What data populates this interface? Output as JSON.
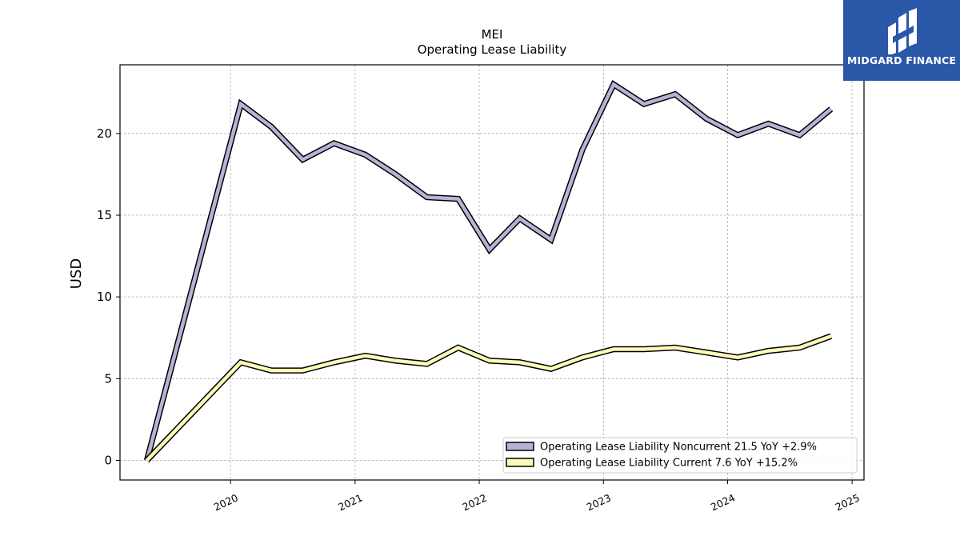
{
  "brand": {
    "name": "MIDGARD FINANCE",
    "background": "#2b57a9"
  },
  "chart_data": {
    "type": "line",
    "title": "MEI",
    "subtitle": "Operating Lease Liability",
    "ylabel": "USD",
    "xlabel": "",
    "ylim": [
      -1.2,
      24.2
    ],
    "xlim": [
      "2019-02-10",
      "2025-02-05"
    ],
    "grid": true,
    "legend_position": "lower-right",
    "x_ticks": [
      "2020",
      "2021",
      "2022",
      "2023",
      "2024",
      "2025"
    ],
    "y_ticks": [
      0,
      5,
      10,
      15,
      20
    ],
    "x": [
      "2019-04-30",
      "2020-01-31",
      "2020-04-30",
      "2020-07-31",
      "2020-10-31",
      "2021-01-31",
      "2021-04-30",
      "2021-07-31",
      "2021-10-31",
      "2022-01-31",
      "2022-04-30",
      "2022-07-31",
      "2022-10-31",
      "2023-01-31",
      "2023-04-30",
      "2023-07-31",
      "2023-10-31",
      "2024-01-31",
      "2024-04-30",
      "2024-07-31",
      "2024-10-31"
    ],
    "series": [
      {
        "name": "Operating Lease Liability Noncurrent",
        "legend_label": "Operating Lease Liability Noncurrent  21.5 YoY +2.9%",
        "color": "#b7b2d6",
        "values": [
          0.0,
          21.8,
          20.4,
          18.4,
          19.4,
          18.7,
          17.5,
          16.1,
          16.0,
          12.9,
          14.8,
          13.5,
          19.0,
          23.0,
          21.8,
          22.4,
          20.9,
          19.9,
          20.6,
          19.9,
          21.5
        ]
      },
      {
        "name": "Operating Lease Liability Current",
        "legend_label": "Operating Lease Liability Current  7.6 YoY +15.2%",
        "color": "#fbfbb8",
        "values": [
          0.0,
          6.0,
          5.5,
          5.5,
          6.0,
          6.4,
          6.1,
          5.9,
          6.9,
          6.1,
          6.0,
          5.6,
          6.3,
          6.8,
          6.8,
          6.9,
          6.6,
          6.3,
          6.7,
          6.9,
          7.6
        ]
      }
    ]
  }
}
